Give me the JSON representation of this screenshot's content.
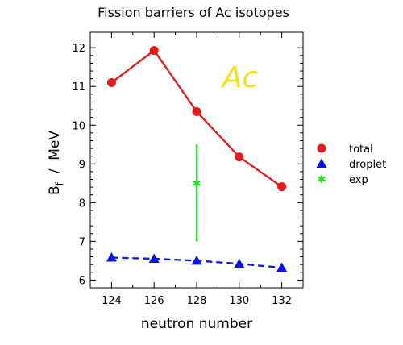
{
  "chart_data": {
    "type": "line",
    "title": "Fission barriers of Ac isotopes",
    "annotation": "Ac",
    "xlabel": "neutron number",
    "ylabel_main": "B",
    "ylabel_sub": "f",
    "ylabel_rest": "  /  MeV",
    "xlim": [
      123,
      133
    ],
    "ylim": [
      5.8,
      12.4
    ],
    "xticks": [
      124,
      126,
      128,
      130,
      132
    ],
    "yticks": [
      6,
      7,
      8,
      9,
      10,
      11,
      12
    ],
    "grid": false,
    "legend_position": "right",
    "series": [
      {
        "name": "total",
        "color": "#e41a1c",
        "marker": "circle",
        "line": "solid",
        "points": [
          {
            "x": 124,
            "y": 11.1
          },
          {
            "x": 126,
            "y": 11.93
          },
          {
            "x": 128,
            "y": 10.35
          },
          {
            "x": 130,
            "y": 9.18
          },
          {
            "x": 132,
            "y": 8.41
          }
        ]
      },
      {
        "name": "droplet",
        "color": "#0a14e6",
        "marker": "triangle",
        "line": "dashed",
        "points": [
          {
            "x": 124,
            "y": 6.58
          },
          {
            "x": 126,
            "y": 6.55
          },
          {
            "x": 128,
            "y": 6.5
          },
          {
            "x": 130,
            "y": 6.42
          },
          {
            "x": 132,
            "y": 6.32
          }
        ]
      },
      {
        "name": "exp",
        "color": "#19e619",
        "marker": "asterisk",
        "line": "none",
        "points": [
          {
            "x": 128,
            "y": 8.5,
            "ylow": 7.0,
            "yhigh": 9.5
          }
        ]
      }
    ],
    "colors": {
      "annotation": "#f2e21a",
      "frame": "#000000"
    }
  }
}
